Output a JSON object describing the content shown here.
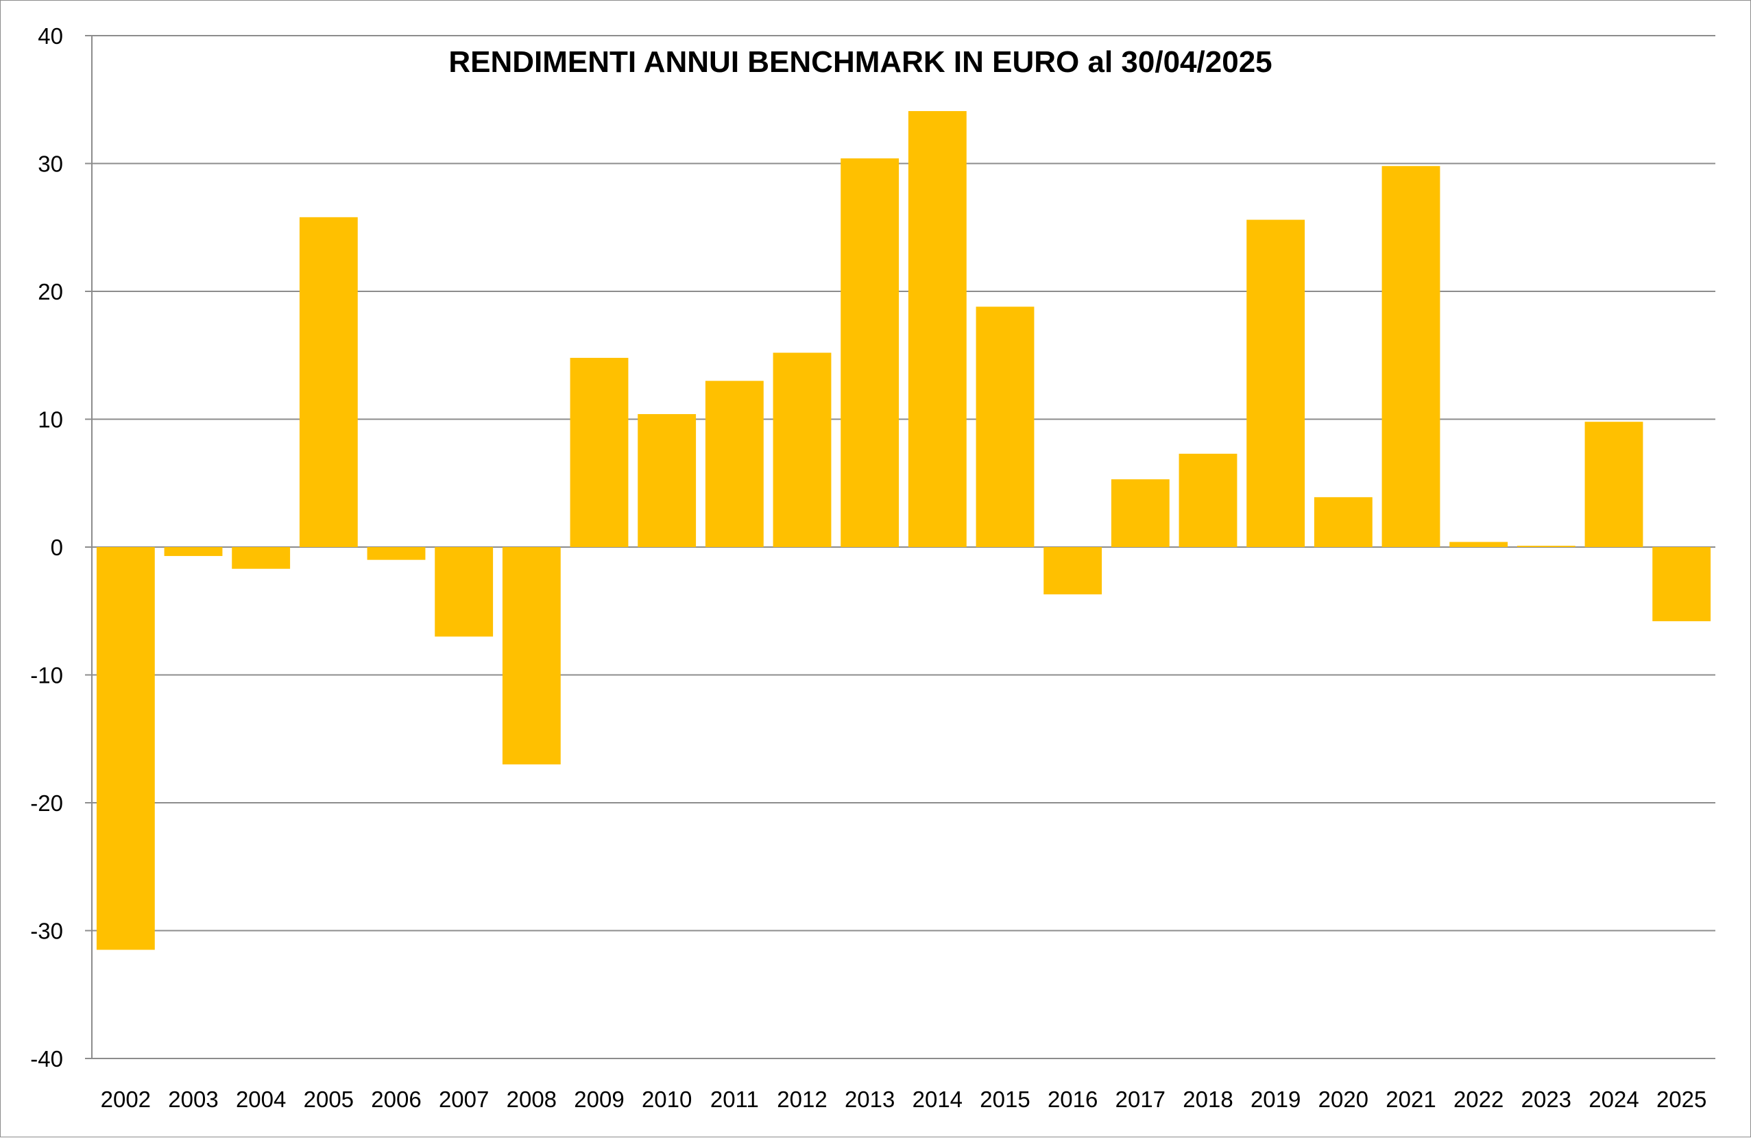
{
  "chart_data": {
    "type": "bar",
    "title": "RENDIMENTI ANNUI BENCHMARK IN EURO al 30/04/2025",
    "xlabel": "",
    "ylabel": "",
    "ylim": [
      -40,
      40
    ],
    "yticks": [
      "40",
      "30",
      "20",
      "10",
      "0",
      "-10",
      "-20",
      "-30",
      "-40"
    ],
    "grid": true,
    "legend": "none",
    "bar_color": "#FFC000",
    "categories": [
      "2002",
      "2003",
      "2004",
      "2005",
      "2006",
      "2007",
      "2008",
      "2009",
      "2010",
      "2011",
      "2012",
      "2013",
      "2014",
      "2015",
      "2016",
      "2017",
      "2018",
      "2019",
      "2020",
      "2021",
      "2022",
      "2023",
      "2024",
      "2025"
    ],
    "values": [
      -31.5,
      -0.7,
      -1.7,
      25.8,
      -1.0,
      -7.0,
      -17.0,
      14.8,
      10.4,
      13.0,
      15.2,
      30.4,
      34.1,
      18.8,
      -3.7,
      5.3,
      7.3,
      25.6,
      3.9,
      29.8,
      0.4,
      0.1,
      9.8,
      -5.8
    ]
  }
}
